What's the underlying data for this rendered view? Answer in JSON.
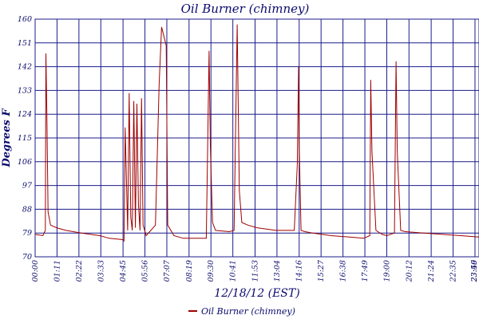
{
  "chart_data": {
    "type": "line",
    "title": "Oil Burner (chimney)",
    "xlabel": "12/18/12 (EST)",
    "ylabel": "Degrees F",
    "ylim": [
      70,
      160
    ],
    "yticks": [
      70,
      79,
      88,
      97,
      106,
      115,
      124,
      133,
      142,
      151,
      160
    ],
    "xlim": [
      "00:00",
      "23:59"
    ],
    "xticks": [
      "00:00",
      "01:11",
      "02:22",
      "03:33",
      "04:45",
      "05:56",
      "07:07",
      "08:19",
      "09:30",
      "10:41",
      "11:53",
      "13:04",
      "14:16",
      "15:27",
      "16:38",
      "17:49",
      "19:00",
      "20:12",
      "21:24",
      "22:35",
      "23:46",
      "23:59"
    ],
    "grid": true,
    "legend_position": "bottom-left",
    "series": [
      {
        "name": "Oil Burner (chimney)",
        "color": "#a00000",
        "x": [
          "00:00",
          "00:25",
          "00:33",
          "00:35",
          "00:38",
          "00:42",
          "00:50",
          "01:10",
          "01:40",
          "02:30",
          "03:30",
          "04:00",
          "04:45",
          "04:48",
          "04:52",
          "05:00",
          "05:05",
          "05:10",
          "05:15",
          "05:20",
          "05:25",
          "05:30",
          "05:35",
          "05:40",
          "05:45",
          "05:50",
          "05:55",
          "06:00",
          "06:30",
          "06:42",
          "06:50",
          "07:05",
          "07:10",
          "07:30",
          "08:00",
          "08:45",
          "09:15",
          "09:24",
          "09:28",
          "09:35",
          "09:45",
          "10:30",
          "10:45",
          "10:55",
          "11:02",
          "11:10",
          "11:30",
          "12:00",
          "13:00",
          "13:30",
          "14:00",
          "14:10",
          "14:14",
          "14:16",
          "14:22",
          "14:35",
          "15:00",
          "16:00",
          "17:00",
          "17:45",
          "18:05",
          "18:08",
          "18:12",
          "18:25",
          "18:45",
          "19:00",
          "19:25",
          "19:30",
          "19:34",
          "19:45",
          "20:00",
          "21:00",
          "22:00",
          "23:00",
          "23:59"
        ],
        "y": [
          78.5,
          78,
          80,
          147,
          124,
          87,
          82,
          81,
          80,
          79,
          78,
          77,
          76.5,
          76,
          119,
          80,
          132,
          85,
          80,
          129,
          81,
          128,
          90,
          80,
          130,
          82,
          80,
          78,
          82,
          135,
          157,
          150,
          82,
          78,
          77,
          77,
          77,
          148,
          112,
          83,
          80,
          79.5,
          80,
          158,
          95,
          83,
          82,
          81,
          80,
          80,
          80,
          105,
          142,
          113,
          80,
          79.5,
          79,
          78,
          77.5,
          77,
          78,
          137,
          110,
          80,
          78.5,
          78,
          79,
          144,
          110,
          80,
          79.5,
          79,
          78.5,
          78,
          77.5
        ]
      }
    ]
  }
}
